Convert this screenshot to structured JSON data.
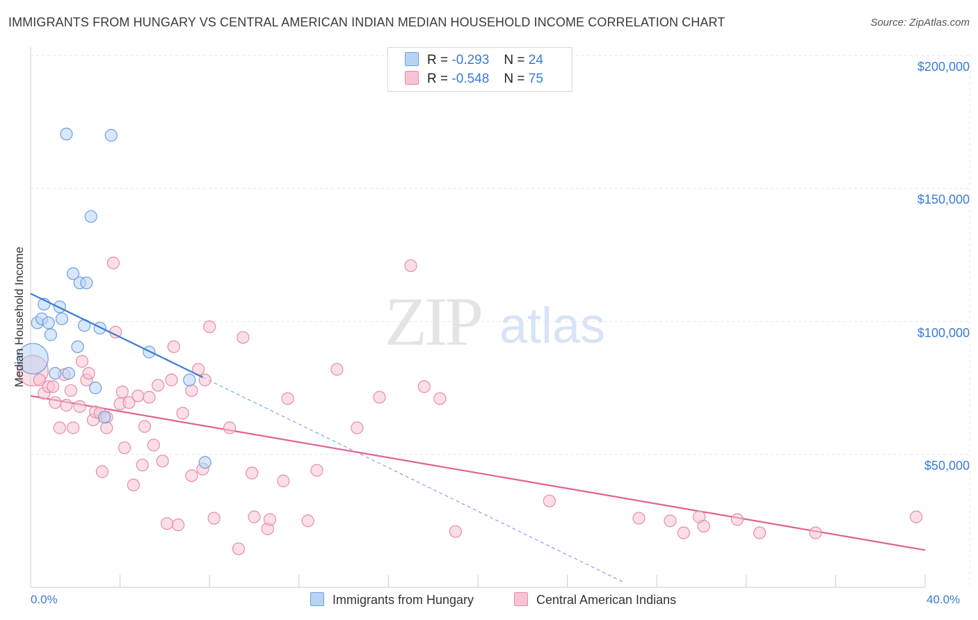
{
  "title": "IMMIGRANTS FROM HUNGARY VS CENTRAL AMERICAN INDIAN MEDIAN HOUSEHOLD INCOME CORRELATION CHART",
  "source": "Source: ZipAtlas.com",
  "watermark": {
    "zip": "ZIP",
    "atlas": "atlas"
  },
  "legend": {
    "r_label": "R =",
    "n_label": "N =",
    "hungary": {
      "r": "-0.293",
      "n": "24"
    },
    "cai": {
      "r": "-0.548",
      "n": "75"
    }
  },
  "colors": {
    "hungary_fill": "#b8d4f5",
    "hungary_stroke": "#6a9fdf",
    "hungary_line": "#3a7bd5",
    "cai_fill": "#f8c4d4",
    "cai_stroke": "#e68aa8",
    "cai_line": "#e0628c",
    "grid": "#e6e6e6",
    "axis_text": "#3a7bd5"
  },
  "chart_data": {
    "type": "scatter",
    "title": "IMMIGRANTS FROM HUNGARY VS CENTRAL AMERICAN INDIAN MEDIAN HOUSEHOLD INCOME CORRELATION CHART",
    "xlabel": "",
    "ylabel": "Median Household Income",
    "xlim": [
      0,
      40
    ],
    "ylim": [
      0,
      200000
    ],
    "x_tick_labels": [
      "0.0%",
      "40.0%"
    ],
    "y_ticks": [
      50000,
      100000,
      150000,
      200000
    ],
    "y_tick_labels": [
      "$50,000",
      "$100,000",
      "$150,000",
      "$200,000"
    ],
    "series": [
      {
        "name": "Immigrants from Hungary",
        "trend": {
          "x0": 0,
          "y0": 110500,
          "x1": 7.7,
          "y1": 79000,
          "dash_to_x": 26.5,
          "dash_to_y": 2000
        },
        "points": [
          {
            "x": 0.1,
            "y": 86000,
            "big": true
          },
          {
            "x": 0.3,
            "y": 99500
          },
          {
            "x": 0.5,
            "y": 101000
          },
          {
            "x": 0.6,
            "y": 106500
          },
          {
            "x": 0.8,
            "y": 99500
          },
          {
            "x": 0.9,
            "y": 95000
          },
          {
            "x": 1.1,
            "y": 80500
          },
          {
            "x": 1.3,
            "y": 105500
          },
          {
            "x": 1.4,
            "y": 101000
          },
          {
            "x": 1.6,
            "y": 170500
          },
          {
            "x": 1.7,
            "y": 80500
          },
          {
            "x": 1.9,
            "y": 118000
          },
          {
            "x": 2.1,
            "y": 90500
          },
          {
            "x": 2.2,
            "y": 114500
          },
          {
            "x": 2.4,
            "y": 98500
          },
          {
            "x": 2.5,
            "y": 114500
          },
          {
            "x": 2.7,
            "y": 139500
          },
          {
            "x": 2.9,
            "y": 75000
          },
          {
            "x": 3.1,
            "y": 97500
          },
          {
            "x": 3.3,
            "y": 64000
          },
          {
            "x": 3.6,
            "y": 170000
          },
          {
            "x": 5.3,
            "y": 88500
          },
          {
            "x": 7.1,
            "y": 78000
          },
          {
            "x": 7.8,
            "y": 47000
          }
        ]
      },
      {
        "name": "Central American Indians",
        "trend": {
          "x0": 0,
          "y0": 72000,
          "x1": 40,
          "y1": 14000
        },
        "points": [
          {
            "x": 0.1,
            "y": 81500,
            "big": true
          },
          {
            "x": 0.4,
            "y": 78000
          },
          {
            "x": 0.6,
            "y": 73000
          },
          {
            "x": 0.8,
            "y": 75500
          },
          {
            "x": 1.0,
            "y": 75500
          },
          {
            "x": 1.1,
            "y": 69500
          },
          {
            "x": 1.3,
            "y": 60000
          },
          {
            "x": 1.5,
            "y": 80000
          },
          {
            "x": 1.6,
            "y": 68500
          },
          {
            "x": 1.8,
            "y": 74000
          },
          {
            "x": 1.9,
            "y": 60000
          },
          {
            "x": 2.2,
            "y": 68000
          },
          {
            "x": 2.3,
            "y": 85000
          },
          {
            "x": 2.5,
            "y": 78000
          },
          {
            "x": 2.6,
            "y": 80500
          },
          {
            "x": 2.8,
            "y": 63000
          },
          {
            "x": 2.9,
            "y": 66000
          },
          {
            "x": 3.1,
            "y": 65500
          },
          {
            "x": 3.2,
            "y": 43500
          },
          {
            "x": 3.4,
            "y": 64000
          },
          {
            "x": 3.4,
            "y": 60000
          },
          {
            "x": 3.7,
            "y": 122000
          },
          {
            "x": 3.8,
            "y": 96000
          },
          {
            "x": 4.0,
            "y": 69000
          },
          {
            "x": 4.1,
            "y": 73500
          },
          {
            "x": 4.2,
            "y": 52500
          },
          {
            "x": 4.4,
            "y": 69500
          },
          {
            "x": 4.6,
            "y": 38500
          },
          {
            "x": 4.8,
            "y": 72000
          },
          {
            "x": 5.0,
            "y": 46000
          },
          {
            "x": 5.1,
            "y": 60500
          },
          {
            "x": 5.3,
            "y": 71500
          },
          {
            "x": 5.5,
            "y": 53500
          },
          {
            "x": 5.7,
            "y": 76000
          },
          {
            "x": 5.9,
            "y": 47500
          },
          {
            "x": 6.1,
            "y": 24000
          },
          {
            "x": 6.3,
            "y": 78000
          },
          {
            "x": 6.4,
            "y": 90500
          },
          {
            "x": 6.6,
            "y": 23500
          },
          {
            "x": 6.8,
            "y": 65500
          },
          {
            "x": 7.2,
            "y": 74000
          },
          {
            "x": 7.2,
            "y": 42000
          },
          {
            "x": 7.5,
            "y": 82000
          },
          {
            "x": 7.7,
            "y": 44500
          },
          {
            "x": 7.8,
            "y": 78000
          },
          {
            "x": 8.0,
            "y": 98000
          },
          {
            "x": 8.2,
            "y": 26000
          },
          {
            "x": 8.9,
            "y": 60000
          },
          {
            "x": 9.3,
            "y": 14500
          },
          {
            "x": 9.5,
            "y": 94000
          },
          {
            "x": 9.9,
            "y": 43000
          },
          {
            "x": 10.0,
            "y": 26500
          },
          {
            "x": 10.6,
            "y": 22000
          },
          {
            "x": 10.7,
            "y": 25500
          },
          {
            "x": 11.3,
            "y": 40000
          },
          {
            "x": 11.5,
            "y": 71000
          },
          {
            "x": 12.4,
            "y": 25000
          },
          {
            "x": 12.8,
            "y": 44000
          },
          {
            "x": 13.7,
            "y": 82000
          },
          {
            "x": 14.6,
            "y": 60000
          },
          {
            "x": 15.6,
            "y": 71500
          },
          {
            "x": 17.0,
            "y": 121000
          },
          {
            "x": 17.6,
            "y": 75500
          },
          {
            "x": 18.3,
            "y": 71000
          },
          {
            "x": 19.0,
            "y": 21000
          },
          {
            "x": 23.2,
            "y": 32500
          },
          {
            "x": 27.2,
            "y": 26000
          },
          {
            "x": 28.6,
            "y": 25000
          },
          {
            "x": 29.2,
            "y": 20500
          },
          {
            "x": 29.9,
            "y": 26500
          },
          {
            "x": 30.1,
            "y": 23000
          },
          {
            "x": 31.6,
            "y": 25500
          },
          {
            "x": 32.6,
            "y": 20500
          },
          {
            "x": 35.1,
            "y": 20500
          },
          {
            "x": 39.6,
            "y": 26500
          }
        ]
      }
    ]
  }
}
